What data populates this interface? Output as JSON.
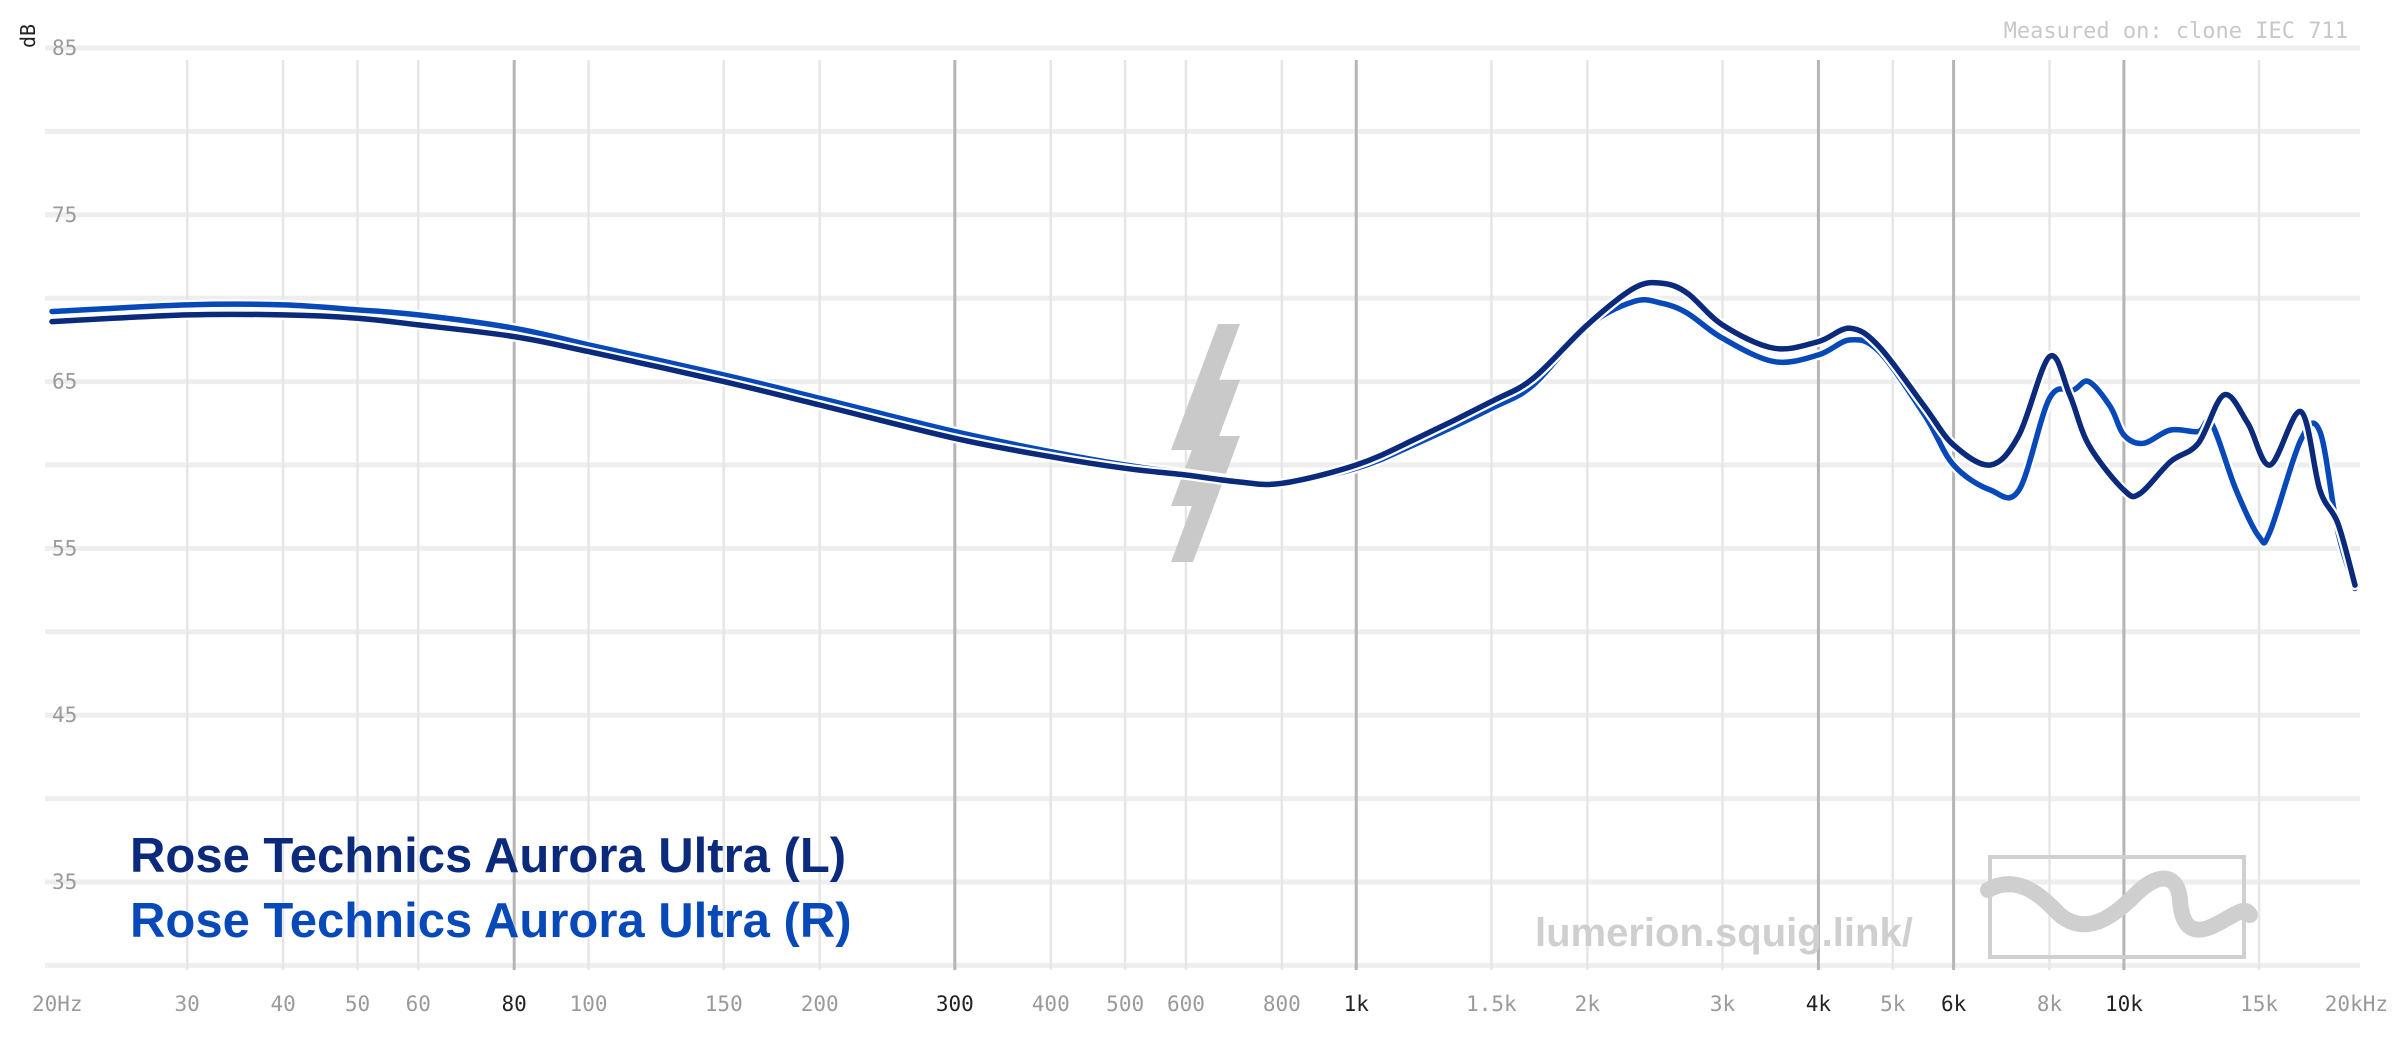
{
  "measured_note": "Measured on: clone IEC 711",
  "watermark": "lumerion.squig.link/",
  "chart_data": {
    "type": "line",
    "title": "",
    "xlabel": "",
    "ylabel": "dB",
    "x_scale": "log",
    "xlim": [
      20,
      20000
    ],
    "ylim": [
      30,
      85
    ],
    "grid": true,
    "legend_position": "bottom-left",
    "y_ticks": [
      35,
      45,
      55,
      65,
      75,
      85
    ],
    "x_ticks": [
      {
        "value": 20,
        "label": "20Hz",
        "major": false
      },
      {
        "value": 30,
        "label": "30",
        "major": false
      },
      {
        "value": 40,
        "label": "40",
        "major": false
      },
      {
        "value": 50,
        "label": "50",
        "major": false
      },
      {
        "value": 60,
        "label": "60",
        "major": false
      },
      {
        "value": 80,
        "label": "80",
        "major": true
      },
      {
        "value": 100,
        "label": "100",
        "major": false
      },
      {
        "value": 150,
        "label": "150",
        "major": false
      },
      {
        "value": 200,
        "label": "200",
        "major": false
      },
      {
        "value": 300,
        "label": "300",
        "major": true
      },
      {
        "value": 400,
        "label": "400",
        "major": false
      },
      {
        "value": 500,
        "label": "500",
        "major": false
      },
      {
        "value": 600,
        "label": "600",
        "major": false
      },
      {
        "value": 800,
        "label": "800",
        "major": false
      },
      {
        "value": 1000,
        "label": "1k",
        "major": true
      },
      {
        "value": 1500,
        "label": "1.5k",
        "major": false
      },
      {
        "value": 2000,
        "label": "2k",
        "major": false
      },
      {
        "value": 3000,
        "label": "3k",
        "major": false
      },
      {
        "value": 4000,
        "label": "4k",
        "major": true
      },
      {
        "value": 5000,
        "label": "5k",
        "major": false
      },
      {
        "value": 6000,
        "label": "6k",
        "major": true
      },
      {
        "value": 8000,
        "label": "8k",
        "major": false
      },
      {
        "value": 10000,
        "label": "10k",
        "major": true
      },
      {
        "value": 15000,
        "label": "15k",
        "major": false
      },
      {
        "value": 20000,
        "label": "20kHz",
        "major": false
      }
    ],
    "series": [
      {
        "name": "Rose Technics Aurora Ultra (L)",
        "color": "#0b2a7c",
        "points": [
          [
            20,
            68.6
          ],
          [
            30,
            69.0
          ],
          [
            40,
            69.0
          ],
          [
            50,
            68.8
          ],
          [
            60,
            68.4
          ],
          [
            80,
            67.7
          ],
          [
            100,
            66.8
          ],
          [
            150,
            65.0
          ],
          [
            200,
            63.6
          ],
          [
            300,
            61.6
          ],
          [
            400,
            60.5
          ],
          [
            500,
            59.8
          ],
          [
            600,
            59.4
          ],
          [
            700,
            59.0
          ],
          [
            800,
            58.9
          ],
          [
            1000,
            60.0
          ],
          [
            1200,
            61.6
          ],
          [
            1500,
            63.8
          ],
          [
            1700,
            65.2
          ],
          [
            2000,
            68.4
          ],
          [
            2300,
            70.6
          ],
          [
            2500,
            70.9
          ],
          [
            2700,
            70.3
          ],
          [
            3000,
            68.4
          ],
          [
            3500,
            67.0
          ],
          [
            4000,
            67.4
          ],
          [
            4400,
            68.2
          ],
          [
            4800,
            67.1
          ],
          [
            5500,
            63.5
          ],
          [
            6000,
            61.2
          ],
          [
            6700,
            60.0
          ],
          [
            7300,
            61.8
          ],
          [
            8000,
            66.5
          ],
          [
            8500,
            64.2
          ],
          [
            9000,
            61.2
          ],
          [
            10000,
            58.5
          ],
          [
            10500,
            58.3
          ],
          [
            11500,
            60.2
          ],
          [
            12500,
            61.3
          ],
          [
            13500,
            64.2
          ],
          [
            14500,
            62.5
          ],
          [
            15500,
            60.0
          ],
          [
            17000,
            63.2
          ],
          [
            18000,
            58.5
          ],
          [
            19000,
            56.5
          ],
          [
            20000,
            52.8
          ]
        ]
      },
      {
        "name": "Rose Technics Aurora Ultra (R)",
        "color": "#0849b9",
        "points": [
          [
            20,
            69.2
          ],
          [
            30,
            69.6
          ],
          [
            40,
            69.6
          ],
          [
            50,
            69.3
          ],
          [
            60,
            69.0
          ],
          [
            80,
            68.2
          ],
          [
            100,
            67.2
          ],
          [
            150,
            65.4
          ],
          [
            200,
            64.0
          ],
          [
            300,
            62.0
          ],
          [
            400,
            60.8
          ],
          [
            500,
            60.0
          ],
          [
            600,
            59.5
          ],
          [
            700,
            59.1
          ],
          [
            800,
            58.9
          ],
          [
            1000,
            59.8
          ],
          [
            1200,
            61.3
          ],
          [
            1500,
            63.4
          ],
          [
            1700,
            64.8
          ],
          [
            2000,
            68.3
          ],
          [
            2300,
            69.8
          ],
          [
            2500,
            69.7
          ],
          [
            2700,
            69.1
          ],
          [
            3000,
            67.6
          ],
          [
            3500,
            66.2
          ],
          [
            4000,
            66.6
          ],
          [
            4400,
            67.5
          ],
          [
            4800,
            66.8
          ],
          [
            5500,
            63.0
          ],
          [
            6000,
            60.0
          ],
          [
            6700,
            58.5
          ],
          [
            7300,
            58.5
          ],
          [
            8000,
            64.0
          ],
          [
            8600,
            64.5
          ],
          [
            9000,
            65.0
          ],
          [
            9600,
            63.5
          ],
          [
            10000,
            61.8
          ],
          [
            10600,
            61.3
          ],
          [
            11500,
            62.1
          ],
          [
            12500,
            62.0
          ],
          [
            13000,
            62.5
          ],
          [
            14000,
            58.5
          ],
          [
            15000,
            55.7
          ],
          [
            15500,
            56.0
          ],
          [
            17000,
            61.5
          ],
          [
            18000,
            62.0
          ],
          [
            19000,
            56.0
          ],
          [
            20000,
            52.6
          ]
        ]
      }
    ]
  }
}
